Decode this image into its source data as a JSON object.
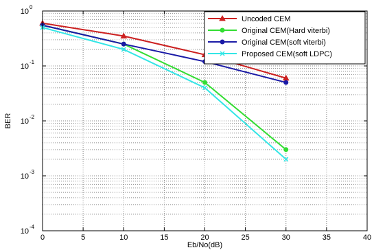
{
  "chart_data": {
    "type": "line",
    "xlabel": "Eb/No(dB)",
    "ylabel": "BER",
    "xlim": [
      0,
      40
    ],
    "ylim": [
      0.0001,
      1
    ],
    "yscale": "log",
    "xticks": [
      "0",
      "5",
      "10",
      "15",
      "20",
      "25",
      "30",
      "35",
      "40"
    ],
    "yticks": [
      {
        "base": "10",
        "exp": "-4"
      },
      {
        "base": "10",
        "exp": "-3"
      },
      {
        "base": "10",
        "exp": "-2"
      },
      {
        "base": "10",
        "exp": "-1"
      },
      {
        "base": "10",
        "exp": "0"
      }
    ],
    "grid": true,
    "legend_position": "top-right",
    "series": [
      {
        "name": "Uncoded CEM",
        "color": "#cc2020",
        "marker": "triangle",
        "x": [
          0,
          10,
          20,
          30
        ],
        "y": [
          0.6,
          0.35,
          0.16,
          0.06
        ]
      },
      {
        "name": "Original CEM(Hard viterbi)",
        "color": "#33dd33",
        "marker": "circle",
        "x": [
          0,
          10,
          20,
          30
        ],
        "y": [
          0.55,
          0.25,
          0.05,
          0.003
        ]
      },
      {
        "name": "Original CEM(soft viterbi)",
        "color": "#1a1aa6",
        "marker": "circle",
        "x": [
          0,
          10,
          20,
          30
        ],
        "y": [
          0.55,
          0.25,
          0.12,
          0.05
        ]
      },
      {
        "name": "Proposed CEM(soft LDPC)",
        "color": "#33e6e6",
        "marker": "x",
        "x": [
          0,
          10,
          20,
          30
        ],
        "y": [
          0.5,
          0.2,
          0.04,
          0.002
        ]
      }
    ]
  }
}
